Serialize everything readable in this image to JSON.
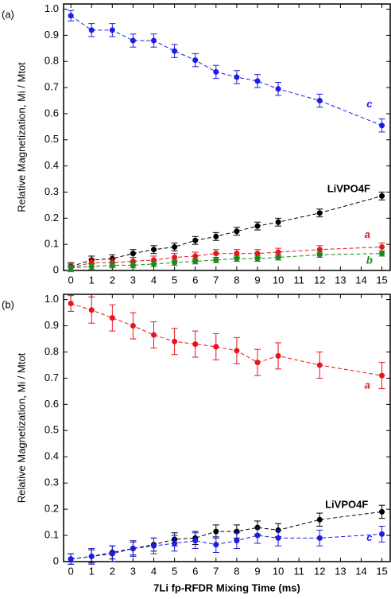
{
  "chart_data": [
    {
      "type": "scatter",
      "panel_label": "(a)",
      "y_label": "Relative Magnetization, Mi / Mtot",
      "x": [
        0,
        1,
        2,
        3,
        4,
        5,
        6,
        7,
        8,
        9,
        10,
        12,
        15
      ],
      "xlim": [
        -0.35,
        15.4
      ],
      "xticks": [
        0,
        1,
        2,
        3,
        4,
        5,
        6,
        7,
        8,
        9,
        10,
        11,
        12,
        13,
        14,
        15
      ],
      "ylim": [
        0,
        1.02
      ],
      "yticks": [
        0,
        0.1,
        0.2,
        0.3,
        0.4,
        0.5,
        0.6,
        0.7,
        0.8,
        0.9,
        {
          "value": 1,
          "label": "1.0"
        }
      ],
      "series": [
        {
          "name": "c",
          "color": "#1c1ce6",
          "values": [
            0.975,
            0.92,
            0.92,
            0.88,
            0.88,
            0.84,
            0.805,
            0.76,
            0.74,
            0.725,
            0.695,
            0.65,
            0.555
          ],
          "errors": [
            0.02,
            0.025,
            0.025,
            0.025,
            0.025,
            0.025,
            0.025,
            0.025,
            0.025,
            0.025,
            0.025,
            0.025,
            0.025
          ]
        },
        {
          "name": "LiVPO4F",
          "color": "#000000",
          "values": [
            0.015,
            0.04,
            0.045,
            0.065,
            0.08,
            0.09,
            0.115,
            0.13,
            0.15,
            0.17,
            0.185,
            0.22,
            0.285
          ],
          "errors": [
            0.015,
            0.015,
            0.015,
            0.015,
            0.015,
            0.015,
            0.015,
            0.015,
            0.015,
            0.015,
            0.015,
            0.015,
            0.015
          ]
        },
        {
          "name": "a",
          "color": "#e8141c",
          "values": [
            0.01,
            0.03,
            0.03,
            0.035,
            0.04,
            0.05,
            0.055,
            0.065,
            0.065,
            0.065,
            0.07,
            0.08,
            0.09
          ],
          "errors": [
            0.015,
            0.015,
            0.015,
            0.015,
            0.015,
            0.015,
            0.015,
            0.015,
            0.015,
            0.015,
            0.015,
            0.015,
            0.015
          ]
        },
        {
          "name": "b",
          "color": "#1a8a1a",
          "values": [
            0.01,
            0.015,
            0.02,
            0.02,
            0.025,
            0.03,
            0.035,
            0.04,
            0.045,
            0.045,
            0.05,
            0.06,
            0.065
          ],
          "errors": [
            0.01,
            0.01,
            0.01,
            0.01,
            0.01,
            0.01,
            0.01,
            0.01,
            0.01,
            0.01,
            0.01,
            0.01,
            0.01
          ]
        }
      ]
    },
    {
      "type": "scatter",
      "panel_label": "(b)",
      "y_label": "Relative Magnetization, Mi / Mtot",
      "x_label": "7Li fp-RFDR Mixing Time (ms)",
      "x": [
        0,
        1,
        2,
        3,
        4,
        5,
        6,
        7,
        8,
        9,
        10,
        12,
        15
      ],
      "xlim": [
        -0.35,
        15.4
      ],
      "xticks": [
        0,
        1,
        2,
        3,
        4,
        5,
        6,
        7,
        8,
        9,
        10,
        11,
        12,
        13,
        14,
        15
      ],
      "ylim": [
        0,
        1.02
      ],
      "yticks": [
        0,
        0.1,
        0.2,
        0.3,
        0.4,
        0.5,
        0.6,
        0.7,
        0.8,
        0.9,
        {
          "value": 1,
          "label": "1.0"
        }
      ],
      "series": [
        {
          "name": "a",
          "color": "#e8141c",
          "values": [
            0.985,
            0.96,
            0.93,
            0.9,
            0.865,
            0.84,
            0.83,
            0.82,
            0.805,
            0.76,
            0.785,
            0.75,
            0.71
          ],
          "errors": [
            0.03,
            0.05,
            0.05,
            0.05,
            0.05,
            0.05,
            0.05,
            0.05,
            0.05,
            0.05,
            0.05,
            0.05,
            0.05
          ]
        },
        {
          "name": "LiVPO4F",
          "color": "#000000",
          "values": [
            0.01,
            0.02,
            0.035,
            0.05,
            0.065,
            0.085,
            0.09,
            0.115,
            0.115,
            0.13,
            0.12,
            0.16,
            0.19
          ],
          "errors": [
            0.02,
            0.025,
            0.025,
            0.025,
            0.025,
            0.025,
            0.025,
            0.025,
            0.025,
            0.025,
            0.025,
            0.025,
            0.025
          ]
        },
        {
          "name": "c",
          "color": "#1c1ce6",
          "values": [
            0.01,
            0.02,
            0.03,
            0.05,
            0.06,
            0.07,
            0.08,
            0.065,
            0.08,
            0.1,
            0.09,
            0.09,
            0.105
          ],
          "errors": [
            0.02,
            0.03,
            0.03,
            0.03,
            0.03,
            0.03,
            0.03,
            0.03,
            0.03,
            0.03,
            0.03,
            0.03,
            0.03
          ]
        }
      ]
    }
  ]
}
